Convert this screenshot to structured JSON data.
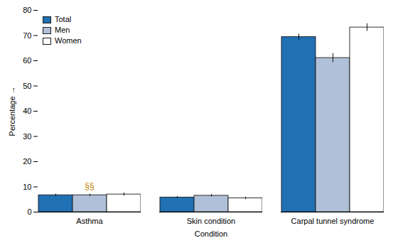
{
  "chart_data": {
    "type": "bar",
    "categories": [
      "Asthma",
      "Skin condition",
      "Carpal tunnel syndrome"
    ],
    "series": [
      {
        "name": "Total",
        "color": "#2070b4",
        "values": [
          6.7,
          5.8,
          69.4
        ],
        "errors": [
          0.5,
          0.4,
          1.2
        ]
      },
      {
        "name": "Men",
        "color": "#b0c0d8",
        "values": [
          6.7,
          6.5,
          61.1
        ],
        "errors": [
          0.5,
          0.5,
          1.8
        ]
      },
      {
        "name": "Women",
        "color": "#ffffff",
        "values": [
          7.0,
          5.5,
          73.2
        ],
        "errors": [
          0.6,
          0.5,
          1.5
        ]
      }
    ],
    "xlabel": "Condition",
    "ylabel": "Percentage",
    "ylim": [
      0,
      80
    ],
    "yticks": [
      0,
      10,
      20,
      30,
      40,
      50,
      60,
      70,
      80
    ],
    "grid": false,
    "legend": "upper left",
    "annotations": [
      {
        "text": "§§",
        "x": "Asthma",
        "y": 9.2,
        "color": "#c8860a"
      }
    ]
  }
}
